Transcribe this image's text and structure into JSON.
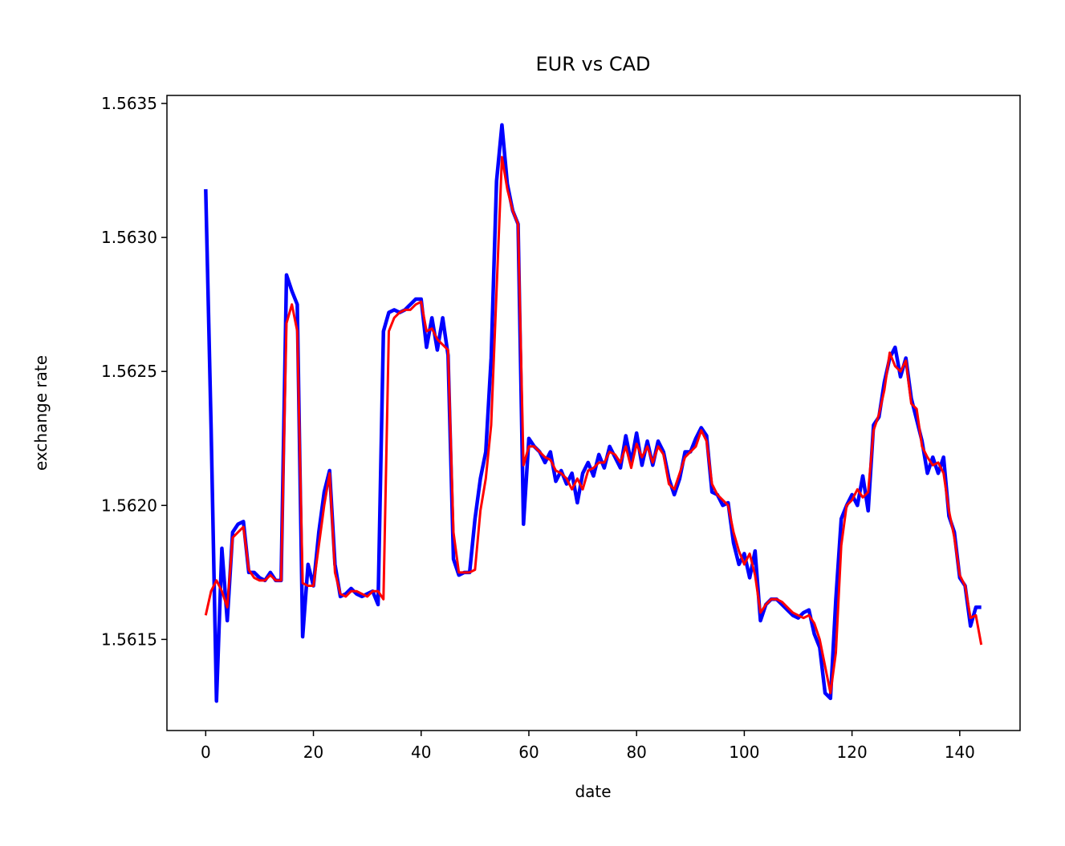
{
  "chart_data": {
    "type": "line",
    "title": "EUR vs CAD",
    "x_label": "date",
    "y_label": "exchange rate",
    "x": [
      0,
      1,
      2,
      3,
      4,
      5,
      6,
      7,
      8,
      9,
      10,
      11,
      12,
      13,
      14,
      15,
      16,
      17,
      18,
      19,
      20,
      21,
      22,
      23,
      24,
      25,
      26,
      27,
      28,
      29,
      30,
      31,
      32,
      33,
      34,
      35,
      36,
      37,
      38,
      39,
      40,
      41,
      42,
      43,
      44,
      45,
      46,
      47,
      48,
      49,
      50,
      51,
      52,
      53,
      54,
      55,
      56,
      57,
      58,
      59,
      60,
      61,
      62,
      63,
      64,
      65,
      66,
      67,
      68,
      69,
      70,
      71,
      72,
      73,
      74,
      75,
      76,
      77,
      78,
      79,
      80,
      81,
      82,
      83,
      84,
      85,
      86,
      87,
      88,
      89,
      90,
      91,
      92,
      93,
      94,
      95,
      96,
      97,
      98,
      99,
      100,
      101,
      102,
      103,
      104,
      105,
      106,
      107,
      108,
      109,
      110,
      111,
      112,
      113,
      114,
      115,
      116,
      117,
      118,
      119,
      120,
      121,
      122,
      123,
      124,
      125,
      126,
      127,
      128,
      129,
      130,
      131,
      132,
      133,
      134,
      135,
      136,
      137,
      138,
      139,
      140,
      141,
      142,
      143,
      144
    ],
    "series": [
      {
        "color": "#0000ff",
        "values": [
          1.56318,
          1.56229,
          1.56127,
          1.56184,
          1.56157,
          1.5619,
          1.56193,
          1.56194,
          1.56175,
          1.56175,
          1.56173,
          1.56172,
          1.56175,
          1.56172,
          1.56172,
          1.56286,
          1.5628,
          1.56275,
          1.56151,
          1.56178,
          1.5617,
          1.5619,
          1.56205,
          1.56213,
          1.56178,
          1.56166,
          1.56167,
          1.56169,
          1.56167,
          1.56166,
          1.56167,
          1.56168,
          1.56163,
          1.56265,
          1.56272,
          1.56273,
          1.56272,
          1.56273,
          1.56275,
          1.56277,
          1.56277,
          1.56259,
          1.5627,
          1.56258,
          1.5627,
          1.56256,
          1.5618,
          1.56174,
          1.56175,
          1.56175,
          1.56195,
          1.5621,
          1.5622,
          1.56255,
          1.56321,
          1.56342,
          1.5632,
          1.5631,
          1.56305,
          1.56193,
          1.56225,
          1.56222,
          1.5622,
          1.56216,
          1.5622,
          1.56209,
          1.56213,
          1.56208,
          1.56212,
          1.56201,
          1.56212,
          1.56216,
          1.56211,
          1.56219,
          1.56214,
          1.56222,
          1.56218,
          1.56214,
          1.56226,
          1.56216,
          1.56227,
          1.56215,
          1.56224,
          1.56215,
          1.56224,
          1.5622,
          1.5621,
          1.56204,
          1.5621,
          1.5622,
          1.5622,
          1.56225,
          1.56229,
          1.56226,
          1.56205,
          1.56204,
          1.562,
          1.56201,
          1.56186,
          1.56178,
          1.56182,
          1.56173,
          1.56183,
          1.56157,
          1.56163,
          1.56165,
          1.56165,
          1.56163,
          1.56161,
          1.56159,
          1.56158,
          1.5616,
          1.56161,
          1.56152,
          1.56147,
          1.5613,
          1.56128,
          1.56165,
          1.56195,
          1.562,
          1.56204,
          1.562,
          1.56211,
          1.56198,
          1.5623,
          1.56233,
          1.56246,
          1.56255,
          1.56259,
          1.56248,
          1.56255,
          1.5624,
          1.56232,
          1.56224,
          1.56212,
          1.56218,
          1.56212,
          1.56218,
          1.56196,
          1.5619,
          1.56173,
          1.5617,
          1.56155,
          1.56162,
          1.56162
        ]
      },
      {
        "color": "#ff0000",
        "values": [
          1.56159,
          1.56168,
          1.56172,
          1.56168,
          1.56162,
          1.56188,
          1.5619,
          1.56192,
          1.56176,
          1.56173,
          1.56172,
          1.56172,
          1.56174,
          1.56172,
          1.56172,
          1.56268,
          1.56275,
          1.56265,
          1.56171,
          1.5617,
          1.5617,
          1.56185,
          1.562,
          1.56212,
          1.56175,
          1.56167,
          1.56166,
          1.56168,
          1.56168,
          1.56167,
          1.56166,
          1.56168,
          1.56168,
          1.56165,
          1.56265,
          1.5627,
          1.56272,
          1.56273,
          1.56273,
          1.56275,
          1.56276,
          1.56265,
          1.56266,
          1.56262,
          1.5626,
          1.56258,
          1.5619,
          1.56175,
          1.56175,
          1.56175,
          1.56176,
          1.56198,
          1.5621,
          1.5623,
          1.5628,
          1.5633,
          1.56318,
          1.5631,
          1.56305,
          1.56215,
          1.56222,
          1.56222,
          1.5622,
          1.56218,
          1.56217,
          1.56213,
          1.56212,
          1.5621,
          1.56206,
          1.5621,
          1.56206,
          1.56213,
          1.56214,
          1.56216,
          1.56216,
          1.5622,
          1.56219,
          1.56216,
          1.56222,
          1.56214,
          1.56223,
          1.56218,
          1.56222,
          1.56216,
          1.56222,
          1.56219,
          1.56208,
          1.56206,
          1.56212,
          1.56218,
          1.5622,
          1.56222,
          1.56228,
          1.56224,
          1.56208,
          1.56204,
          1.56202,
          1.562,
          1.5619,
          1.56183,
          1.56178,
          1.56182,
          1.56174,
          1.5616,
          1.56163,
          1.56165,
          1.56165,
          1.56164,
          1.56162,
          1.5616,
          1.56159,
          1.56158,
          1.56159,
          1.56156,
          1.5615,
          1.5614,
          1.5613,
          1.56145,
          1.56185,
          1.562,
          1.56202,
          1.56206,
          1.56203,
          1.56205,
          1.56228,
          1.56234,
          1.56243,
          1.56257,
          1.56252,
          1.5625,
          1.56254,
          1.56238,
          1.56236,
          1.56222,
          1.56218,
          1.56215,
          1.56216,
          1.56212,
          1.56198,
          1.56188,
          1.56174,
          1.5617,
          1.56158,
          1.56159,
          1.56148
        ]
      }
    ],
    "xlim": [
      -7.2,
      151.2
    ],
    "ylim": [
      1.56116,
      1.56353
    ],
    "xticks": [
      0,
      20,
      40,
      60,
      80,
      100,
      120,
      140
    ],
    "yticks": [
      1.5615,
      {
        "value": 1.562,
        "label": "1.5620"
      },
      1.5625,
      {
        "value": 1.563,
        "label": "1.5630"
      },
      1.5635
    ],
    "grid": false
  }
}
